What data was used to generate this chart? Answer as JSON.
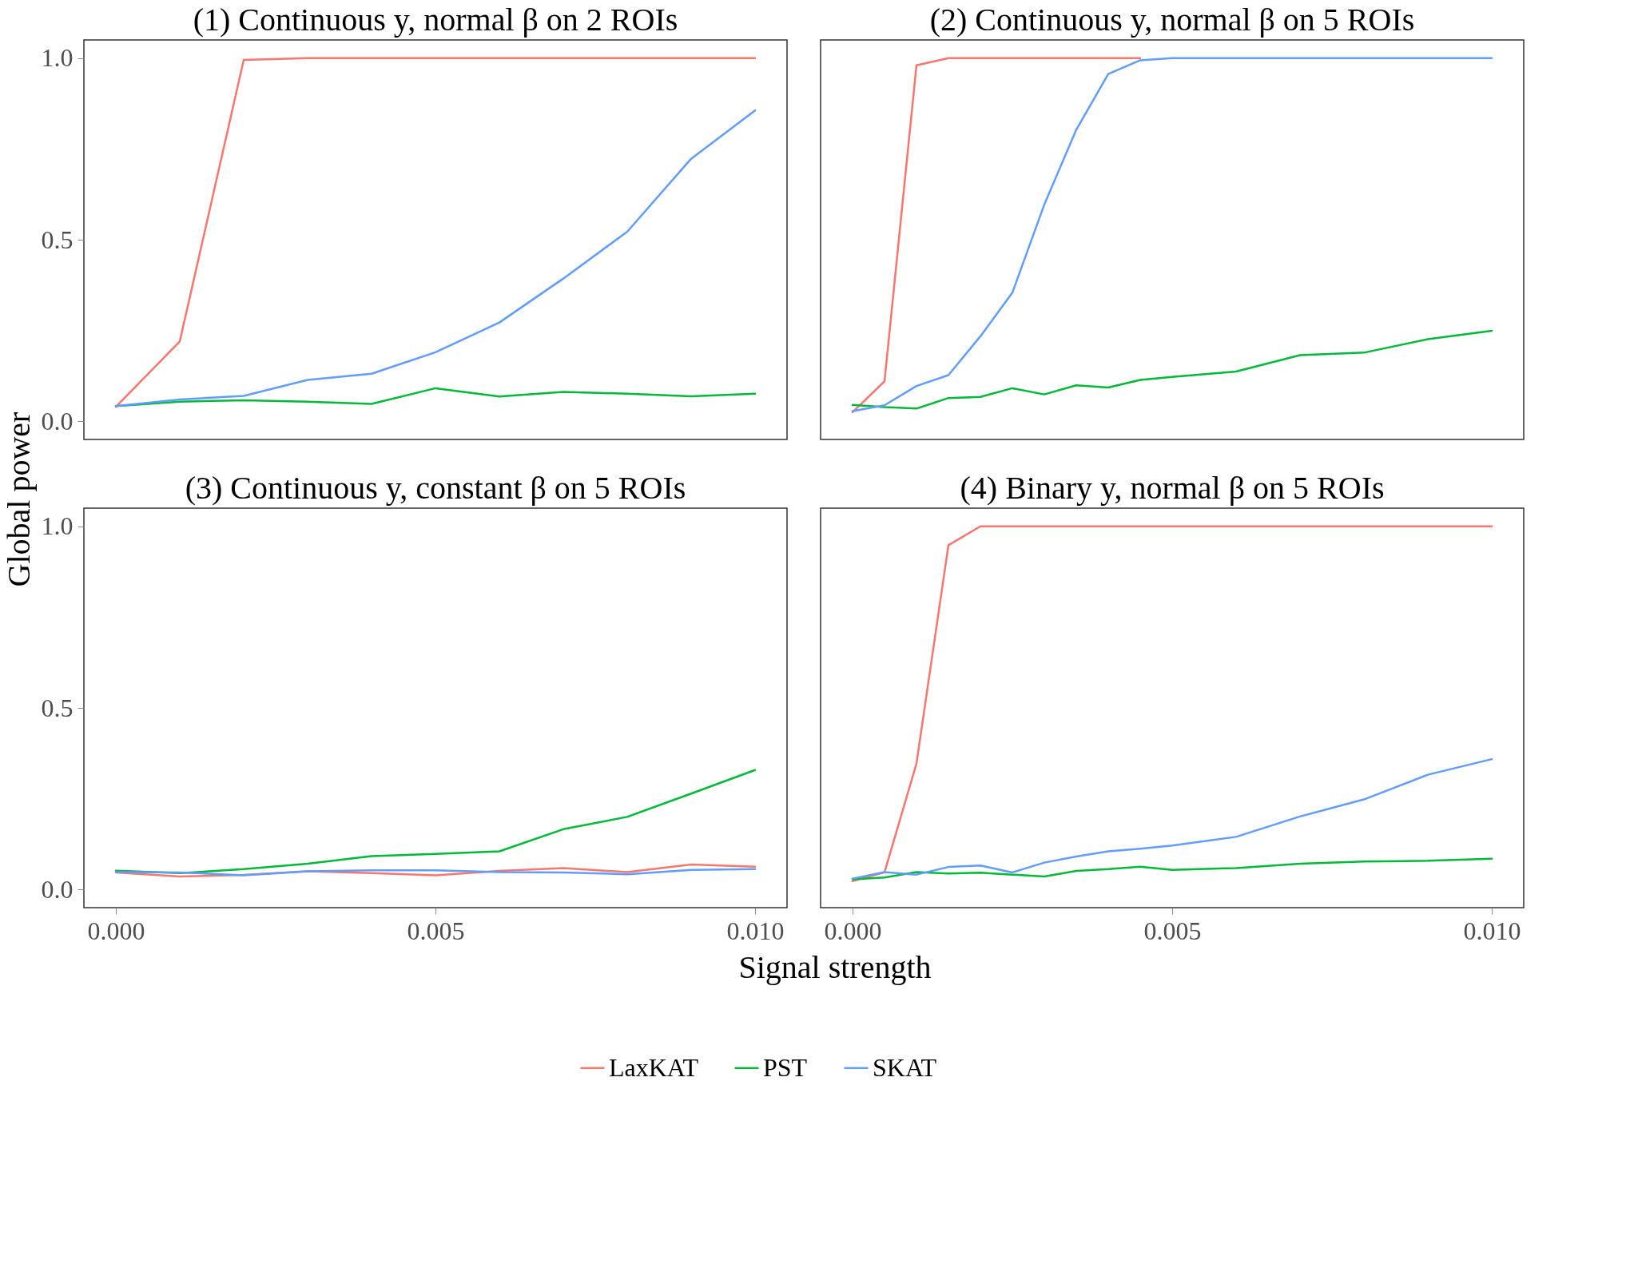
{
  "chart_data": [
    {
      "type": "line",
      "title": "(1) Continuous y, normal β on 2 ROIs",
      "x": [
        0,
        0.001,
        0.002,
        0.003,
        0.004,
        0.005,
        0.006,
        0.007,
        0.008,
        0.009,
        0.01
      ],
      "xlim": [
        -0.0005,
        0.0105
      ],
      "xticks": [
        {
          "value": 0,
          "label": "0.000"
        },
        {
          "value": 0.005,
          "label": "0.005"
        },
        {
          "value": 0.01,
          "label": "0.010"
        }
      ],
      "ylim": [
        -0.05,
        1.05
      ],
      "yticks": [
        {
          "value": 0,
          "label": "0.0"
        },
        {
          "value": 0.5,
          "label": "0.5"
        },
        {
          "value": 1,
          "label": "1.0"
        }
      ],
      "tick_labels": "y",
      "legend": "bottom",
      "series": [
        {
          "name": "LaxKAT",
          "color": "#f8766d",
          "values": [
            0.04,
            0.22,
            0.995,
            1,
            1,
            1,
            1,
            1,
            1,
            1,
            1
          ]
        },
        {
          "name": "PST",
          "color": "#00ba38",
          "values": [
            0.042,
            0.054,
            0.058,
            0.054,
            0.048,
            0.091,
            0.068,
            0.081,
            0.076,
            0.069,
            0.076
          ]
        },
        {
          "name": "SKAT",
          "color": "#619cff",
          "values": [
            0.042,
            0.06,
            0.07,
            0.114,
            0.131,
            0.19,
            0.272,
            0.393,
            0.522,
            0.723,
            0.856
          ]
        }
      ]
    },
    {
      "type": "line",
      "title": "(2) Continuous y, normal β on 5 ROIs",
      "x": [
        0,
        0.0005,
        0.001,
        0.0015,
        0.002,
        0.0025,
        0.003,
        0.0035,
        0.004,
        0.0045,
        0.005,
        0.006,
        0.007,
        0.008,
        0.009,
        0.01
      ],
      "xlim": [
        -0.0005,
        0.0105
      ],
      "xticks": [
        {
          "value": 0,
          "label": "0.000"
        },
        {
          "value": 0.005,
          "label": "0.005"
        },
        {
          "value": 0.01,
          "label": "0.010"
        }
      ],
      "ylim": [
        -0.05,
        1.05
      ],
      "yticks": [
        {
          "value": 0,
          "label": "0.0"
        },
        {
          "value": 0.5,
          "label": "0.5"
        },
        {
          "value": 1,
          "label": "1.0"
        }
      ],
      "tick_labels": false,
      "legend": "bottom",
      "series": [
        {
          "name": "LaxKAT",
          "color": "#f8766d",
          "values": [
            0.025,
            0.11,
            0.98,
            1,
            1,
            1,
            1,
            1,
            1,
            1,
            null,
            null,
            null,
            null,
            null,
            null
          ]
        },
        {
          "name": "PST",
          "color": "#00ba38",
          "values": [
            0.045,
            0.039,
            0.035,
            0.064,
            0.067,
            0.091,
            0.074,
            0.099,
            0.093,
            0.114,
            0.122,
            0.137,
            0.182,
            0.189,
            0.226,
            0.249
          ]
        },
        {
          "name": "SKAT",
          "color": "#619cff",
          "values": [
            0.028,
            0.044,
            0.097,
            0.127,
            0.234,
            0.354,
            0.597,
            0.803,
            0.956,
            0.994,
            1,
            1,
            1,
            1,
            1,
            1
          ]
        }
      ]
    },
    {
      "type": "line",
      "title": "(3) Continuous y, constant β on 5 ROIs",
      "xlabel": "Signal strength",
      "ylabel": "Global power",
      "x": [
        0,
        0.001,
        0.002,
        0.003,
        0.004,
        0.005,
        0.006,
        0.007,
        0.008,
        0.009,
        0.01
      ],
      "xlim": [
        -0.0005,
        0.0105
      ],
      "xticks": [
        {
          "value": 0,
          "label": "0.000"
        },
        {
          "value": 0.005,
          "label": "0.005"
        },
        {
          "value": 0.01,
          "label": "0.010"
        }
      ],
      "ylim": [
        -0.05,
        1.05
      ],
      "yticks": [
        {
          "value": 0,
          "label": "0.0"
        },
        {
          "value": 0.5,
          "label": "0.5"
        },
        {
          "value": 1,
          "label": "1.0"
        }
      ],
      "legend": "bottom",
      "series": [
        {
          "name": "LaxKAT",
          "color": "#f8766d",
          "values": [
            0.047,
            0.036,
            0.04,
            0.05,
            0.045,
            0.039,
            0.051,
            0.059,
            0.048,
            0.069,
            0.063
          ]
        },
        {
          "name": "PST",
          "color": "#00ba38",
          "values": [
            0.052,
            0.045,
            0.056,
            0.071,
            0.092,
            0.098,
            0.105,
            0.166,
            0.2,
            0.264,
            0.329
          ]
        },
        {
          "name": "SKAT",
          "color": "#619cff",
          "values": [
            0.048,
            0.047,
            0.039,
            0.05,
            0.053,
            0.053,
            0.048,
            0.047,
            0.042,
            0.054,
            0.056
          ]
        }
      ]
    },
    {
      "type": "line",
      "title": "(4) Binary y, normal β on 5 ROIs",
      "x": [
        0,
        0.0005,
        0.001,
        0.0015,
        0.002,
        0.0025,
        0.003,
        0.0035,
        0.004,
        0.0045,
        0.005,
        0.006,
        0.007,
        0.008,
        0.009,
        0.01
      ],
      "xlim": [
        -0.0005,
        0.0105
      ],
      "xticks": [
        {
          "value": 0,
          "label": "0.000"
        },
        {
          "value": 0.005,
          "label": "0.005"
        },
        {
          "value": 0.01,
          "label": "0.010"
        }
      ],
      "ylim": [
        -0.05,
        1.05
      ],
      "yticks": [
        {
          "value": 0,
          "label": "0.0"
        },
        {
          "value": 0.5,
          "label": "0.5"
        },
        {
          "value": 1,
          "label": "1.0"
        }
      ],
      "tick_labels": "x",
      "legend": "bottom",
      "series": [
        {
          "name": "LaxKAT",
          "color": "#f8766d",
          "values": [
            0.023,
            0.047,
            0.347,
            0.948,
            1,
            1,
            1,
            1,
            1,
            1,
            1,
            1,
            1,
            1,
            1,
            1
          ]
        },
        {
          "name": "PST",
          "color": "#00ba38",
          "values": [
            0.028,
            0.033,
            0.048,
            0.044,
            0.046,
            0.041,
            0.036,
            0.051,
            0.056,
            0.063,
            0.054,
            0.059,
            0.071,
            0.077,
            0.079,
            0.085
          ]
        },
        {
          "name": "SKAT",
          "color": "#619cff",
          "values": [
            0.03,
            0.048,
            0.041,
            0.062,
            0.066,
            0.047,
            0.074,
            0.091,
            0.105,
            0.112,
            0.121,
            0.145,
            0.201,
            0.248,
            0.316,
            0.359
          ]
        }
      ]
    }
  ]
}
